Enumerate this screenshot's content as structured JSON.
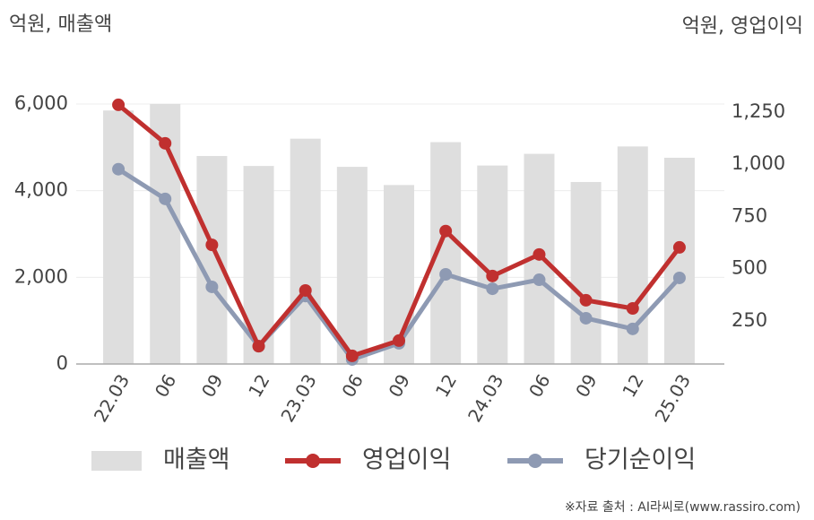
{
  "chart_data": {
    "type": "bar-line",
    "left_unit": "억원, 매출액",
    "right_unit": "억원, 영업이익",
    "categories": [
      "22.03",
      "06",
      "09",
      "12",
      "23.03",
      "06",
      "09",
      "12",
      "24.03",
      "06",
      "09",
      "12",
      "25.03"
    ],
    "series": [
      {
        "name": "매출액",
        "type": "bar",
        "color": "#dedede",
        "values": [
          5850,
          6000,
          4800,
          4570,
          5200,
          4550,
          4130,
          5120,
          4580,
          4850,
          4200,
          5020,
          4760
        ]
      },
      {
        "name": "영업이익",
        "type": "line",
        "axis": "y2",
        "color": "#c0302f",
        "values": [
          1284,
          1100,
          614,
          129,
          396,
          83,
          156,
          680,
          465,
          568,
          349,
          310,
          602
        ]
      },
      {
        "name": "당기순이익",
        "type": "line",
        "axis": "y2",
        "color": "#8e9ab3",
        "values": [
          976,
          834,
          413,
          129,
          369,
          66,
          143,
          473,
          404,
          447,
          263,
          212,
          456
        ]
      }
    ],
    "ylim": [
      0,
      6000
    ],
    "yticks": [
      0,
      {
        "value": 2000,
        "label": "2,000"
      },
      {
        "value": 4000,
        "label": "4,000"
      },
      {
        "value": 6000,
        "label": "6,000"
      }
    ],
    "y2lim": [
      44,
      1288
    ],
    "y2ticks": [
      250,
      500,
      750,
      {
        "value": 1000,
        "label": "1,000"
      },
      {
        "value": 1250,
        "label": "1,250"
      }
    ],
    "grid": true,
    "source": "※자료 출처 : AI라씨로(www.rassiro.com)"
  }
}
